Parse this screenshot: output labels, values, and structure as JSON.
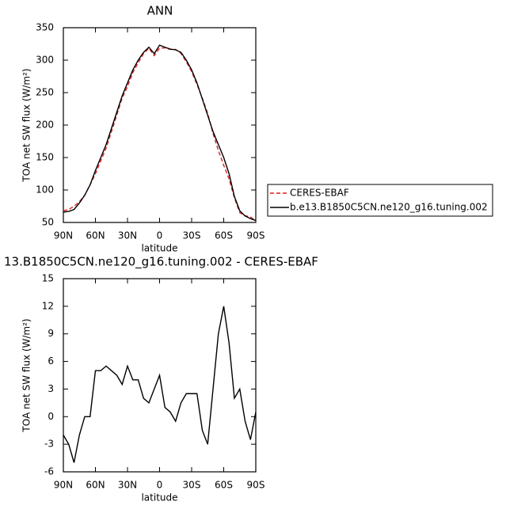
{
  "chart_data": [
    {
      "type": "line",
      "title": "ANN",
      "ylabel": "TOA net SW flux (W/m²)",
      "xlabel": "latitude",
      "x": [
        90,
        85,
        80,
        75,
        70,
        65,
        60,
        55,
        50,
        45,
        40,
        35,
        30,
        25,
        20,
        15,
        10,
        5,
        0,
        -5,
        -10,
        -15,
        -20,
        -25,
        -30,
        -35,
        -40,
        -45,
        -50,
        -55,
        -60,
        -65,
        -70,
        -75,
        -80,
        -85,
        -90
      ],
      "series": [
        {
          "name": "CERES-EBAF",
          "color": "#e41a1c",
          "dash": true,
          "values": [
            68,
            70,
            75,
            82,
            92,
            108,
            125,
            145,
            164.5,
            190,
            215.5,
            241.5,
            259.5,
            281,
            296,
            310,
            318.5,
            307,
            318.5,
            319,
            316.5,
            316.5,
            310.5,
            297.5,
            282.5,
            262.5,
            241.5,
            218,
            187,
            161,
            138,
            117,
            88,
            65,
            60.5,
            58.5,
            52.5
          ]
        },
        {
          "name": "b.e13.B1850C5CN.ne120_g16.tuning.002",
          "color": "#000000",
          "dash": false,
          "values": [
            66,
            67,
            70,
            80,
            92,
            108,
            130,
            150,
            170,
            195,
            220,
            245,
            265,
            285,
            300,
            312,
            320,
            310,
            323,
            320,
            317,
            316,
            312,
            300,
            285,
            265,
            240,
            215,
            190,
            170,
            150,
            125,
            90,
            68,
            60,
            56,
            53
          ]
        }
      ],
      "xlim": [
        90,
        -90
      ],
      "xticks": [
        {
          "value": 90,
          "label": "90N"
        },
        {
          "value": 60,
          "label": "60N"
        },
        {
          "value": 30,
          "label": "30N"
        },
        0,
        {
          "value": -30,
          "label": "30S"
        },
        {
          "value": -60,
          "label": "60S"
        },
        {
          "value": -90,
          "label": "90S"
        }
      ],
      "ylim": [
        50,
        350
      ],
      "yticks": [
        50,
        100,
        150,
        200,
        250,
        300,
        350
      ]
    },
    {
      "type": "line",
      "title": "13.B1850C5CN.ne120_g16.tuning.002 - CERES-EBAF",
      "ylabel": "TOA net SW flux (W/m²)",
      "xlabel": "latitude",
      "x": [
        90,
        85,
        80,
        75,
        70,
        65,
        60,
        55,
        50,
        45,
        40,
        35,
        30,
        25,
        20,
        15,
        10,
        5,
        0,
        -5,
        -10,
        -15,
        -20,
        -25,
        -30,
        -35,
        -40,
        -45,
        -50,
        -55,
        -60,
        -65,
        -70,
        -75,
        -80,
        -85,
        -90
      ],
      "series": [
        {
          "color": "#000000",
          "values": [
            -2,
            -3,
            -5,
            -2,
            0,
            0,
            5,
            5,
            5.5,
            5,
            4.5,
            3.5,
            5.5,
            4,
            4,
            2,
            1.5,
            3,
            4.5,
            1,
            0.5,
            -0.5,
            1.5,
            2.5,
            2.5,
            2.5,
            -1.5,
            -3,
            3,
            9,
            12,
            8,
            2,
            3,
            -0.5,
            -2.5,
            0.5
          ]
        }
      ],
      "xlim": [
        90,
        -90
      ],
      "xticks": [
        {
          "value": 90,
          "label": "90N"
        },
        {
          "value": 60,
          "label": "60N"
        },
        {
          "value": 30,
          "label": "30N"
        },
        0,
        {
          "value": -30,
          "label": "30S"
        },
        {
          "value": -60,
          "label": "60S"
        },
        {
          "value": -90,
          "label": "90S"
        }
      ],
      "ylim": [
        -6,
        15
      ],
      "yticks": [
        -6,
        -3,
        0,
        3,
        6,
        9,
        12,
        15
      ]
    }
  ]
}
